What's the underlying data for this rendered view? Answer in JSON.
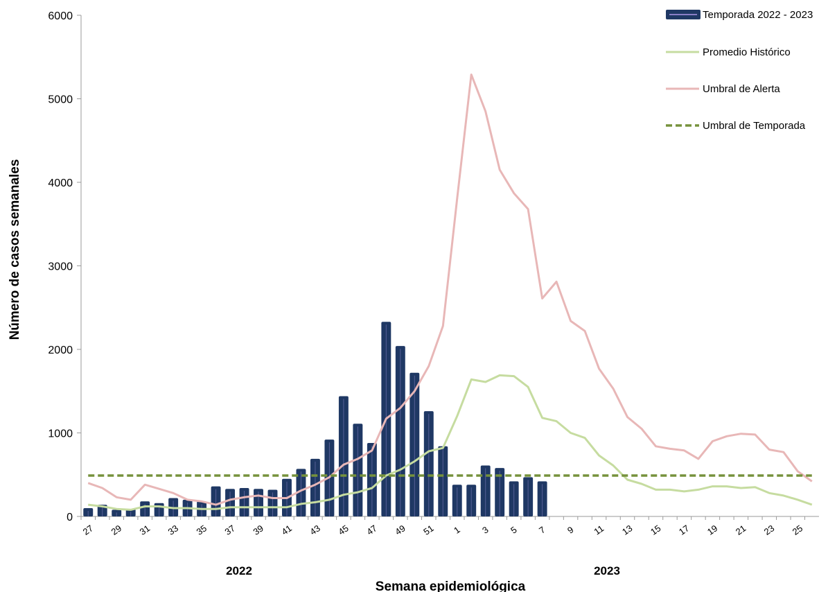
{
  "chart_data": {
    "type": "bar",
    "xlabel": "Semana epidemiológica",
    "ylabel": "Número de casos semanales",
    "ylim": [
      0,
      6000
    ],
    "yticks": [
      0,
      1000,
      2000,
      3000,
      4000,
      5000,
      6000
    ],
    "weeks": [
      "27",
      "28",
      "29",
      "30",
      "31",
      "32",
      "33",
      "34",
      "35",
      "36",
      "37",
      "38",
      "39",
      "40",
      "41",
      "42",
      "43",
      "44",
      "45",
      "46",
      "47",
      "48",
      "49",
      "50",
      "51",
      "52",
      "1",
      "2",
      "3",
      "4",
      "5",
      "6",
      "7",
      "8",
      "9",
      "10",
      "11",
      "12",
      "13",
      "14",
      "15",
      "16",
      "17",
      "18",
      "19",
      "20",
      "21",
      "22",
      "23",
      "24",
      "25",
      "26"
    ],
    "xtick_labels": [
      "27",
      "29",
      "31",
      "33",
      "35",
      "37",
      "39",
      "41",
      "43",
      "45",
      "47",
      "49",
      "51",
      "1",
      "3",
      "5",
      "7",
      "9",
      "11",
      "13",
      "15",
      "17",
      "19",
      "21",
      "23",
      "25"
    ],
    "year_labels": [
      "2022",
      "2023"
    ],
    "legend_position": "top-right",
    "series": [
      {
        "name": "Temporada 2022 - 2023",
        "kind": "bar",
        "color": "#1f3864",
        "values": [
          100,
          140,
          80,
          90,
          180,
          160,
          220,
          200,
          180,
          360,
          330,
          340,
          330,
          320,
          450,
          570,
          690,
          920,
          1440,
          1110,
          880,
          2330,
          2040,
          1720,
          1260,
          840,
          380,
          380,
          610,
          580,
          420,
          470,
          420
        ]
      },
      {
        "name": "Promedio Histórico",
        "kind": "line",
        "color": "#c6dca0",
        "values": [
          140,
          120,
          90,
          80,
          120,
          120,
          100,
          100,
          90,
          90,
          110,
          110,
          110,
          110,
          110,
          150,
          170,
          200,
          260,
          290,
          340,
          490,
          560,
          660,
          780,
          820,
          1200,
          1640,
          1610,
          1690,
          1680,
          1550,
          1180,
          1140,
          1000,
          940,
          730,
          610,
          440,
          390,
          320,
          320,
          300,
          320,
          360,
          360,
          340,
          350,
          280,
          250,
          200,
          140
        ]
      },
      {
        "name": "Umbral de Alerta",
        "kind": "line",
        "color": "#e8b7b7",
        "values": [
          400,
          340,
          230,
          200,
          380,
          330,
          280,
          200,
          180,
          140,
          200,
          230,
          250,
          220,
          220,
          310,
          380,
          470,
          620,
          690,
          790,
          1170,
          1300,
          1500,
          1800,
          2280,
          3800,
          5290,
          4850,
          4150,
          3870,
          3680,
          2610,
          2810,
          2340,
          2220,
          1770,
          1530,
          1190,
          1050,
          840,
          810,
          790,
          690,
          900,
          960,
          990,
          980,
          800,
          770,
          540,
          420
        ]
      },
      {
        "name": "Umbral de Temporada",
        "kind": "dashed-line",
        "color": "#76923c",
        "value": 490
      }
    ]
  }
}
